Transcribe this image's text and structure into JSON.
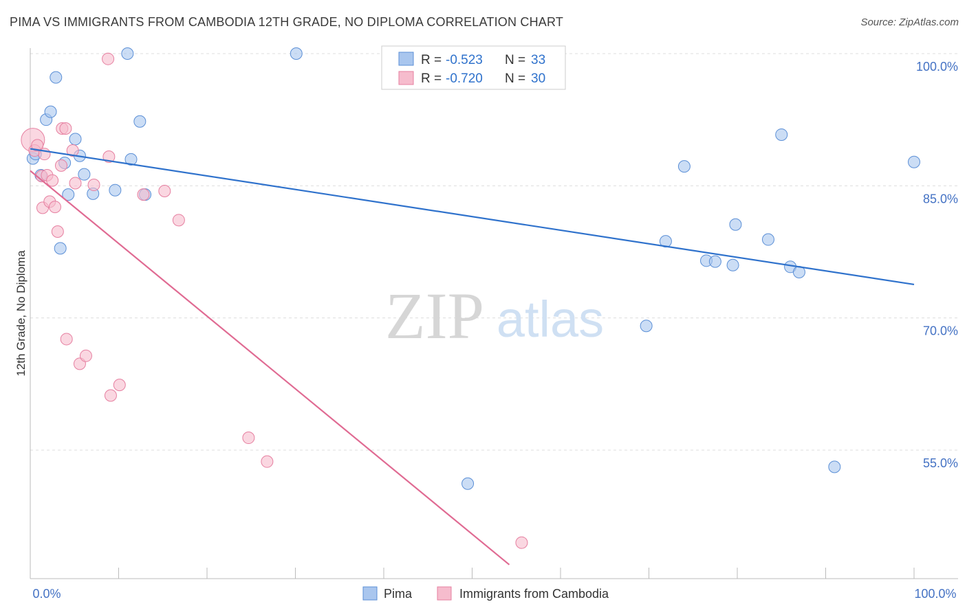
{
  "title": "PIMA VS IMMIGRANTS FROM CAMBODIA 12TH GRADE, NO DIPLOMA CORRELATION CHART",
  "source": "Source: ZipAtlas.com",
  "watermark": {
    "zip": "ZIP",
    "atlas": "atlas"
  },
  "colors": {
    "pima_fill": "#a9c6ee",
    "pima_stroke": "#5b8fd6",
    "pima_line": "#2f72cc",
    "cambodia_fill": "#f6bccd",
    "cambodia_stroke": "#e67fa0",
    "cambodia_line": "#e06b93",
    "tick_label": "#4472c4",
    "grid": "#dddddd"
  },
  "legend": {
    "rows": [
      {
        "r_label": "R =",
        "r_value": "-0.523",
        "n_label": "N =",
        "n_value": "33"
      },
      {
        "r_label": "R =",
        "r_value": "-0.720",
        "n_label": "N =",
        "n_value": "30"
      }
    ]
  },
  "chart_data": {
    "type": "scatter",
    "title": "PIMA VS IMMIGRANTS FROM CAMBODIA 12TH GRADE, NO DIPLOMA CORRELATION CHART",
    "xlabel": "",
    "ylabel": "12th Grade, No Diploma",
    "xlim": [
      0,
      100
    ],
    "ylim": [
      42,
      101.5
    ],
    "x_tick_labels": [
      "0.0%",
      "100.0%"
    ],
    "y_ticks": [
      55,
      70,
      85,
      100
    ],
    "y_tick_labels": [
      "55.0%",
      "70.0%",
      "85.0%",
      "100.0%"
    ],
    "grid": true,
    "legend_position": "top-center",
    "series": [
      {
        "name": "Pima",
        "r": -0.523,
        "n": 33,
        "trend": {
          "x": [
            0,
            100
          ],
          "y": [
            89.2,
            73.8
          ]
        },
        "points": [
          {
            "x": 0.3,
            "y": 88.1
          },
          {
            "x": 0.6,
            "y": 88.6
          },
          {
            "x": 1.2,
            "y": 86.2
          },
          {
            "x": 1.8,
            "y": 92.5
          },
          {
            "x": 2.3,
            "y": 93.4
          },
          {
            "x": 2.9,
            "y": 97.3
          },
          {
            "x": 3.4,
            "y": 77.9
          },
          {
            "x": 3.9,
            "y": 87.6
          },
          {
            "x": 4.3,
            "y": 84.0
          },
          {
            "x": 5.1,
            "y": 90.3
          },
          {
            "x": 5.6,
            "y": 88.4
          },
          {
            "x": 6.1,
            "y": 86.3
          },
          {
            "x": 7.1,
            "y": 84.1
          },
          {
            "x": 9.6,
            "y": 84.5
          },
          {
            "x": 11.0,
            "y": 100.0
          },
          {
            "x": 11.4,
            "y": 88.0
          },
          {
            "x": 12.4,
            "y": 92.3
          },
          {
            "x": 13.0,
            "y": 84.0
          },
          {
            "x": 30.1,
            "y": 100.0
          },
          {
            "x": 49.5,
            "y": 51.2
          },
          {
            "x": 69.7,
            "y": 69.1
          },
          {
            "x": 71.9,
            "y": 78.7
          },
          {
            "x": 74.0,
            "y": 87.2
          },
          {
            "x": 76.5,
            "y": 76.5
          },
          {
            "x": 77.5,
            "y": 76.4
          },
          {
            "x": 79.5,
            "y": 76.0
          },
          {
            "x": 79.8,
            "y": 80.6
          },
          {
            "x": 83.5,
            "y": 78.9
          },
          {
            "x": 85.0,
            "y": 90.8
          },
          {
            "x": 86.0,
            "y": 75.8
          },
          {
            "x": 87.0,
            "y": 75.2
          },
          {
            "x": 91.0,
            "y": 53.1
          },
          {
            "x": 100.0,
            "y": 87.7
          }
        ]
      },
      {
        "name": "Immigrants from Cambodia",
        "r": -0.72,
        "n": 30,
        "trend": {
          "x": [
            0,
            54.2
          ],
          "y": [
            86.7,
            42
          ]
        },
        "points": [
          {
            "x": 0.3,
            "y": 90.2,
            "big": true
          },
          {
            "x": 0.5,
            "y": 89.0
          },
          {
            "x": 0.8,
            "y": 89.6
          },
          {
            "x": 1.3,
            "y": 86.1
          },
          {
            "x": 1.4,
            "y": 82.5
          },
          {
            "x": 1.6,
            "y": 88.6
          },
          {
            "x": 1.9,
            "y": 86.2
          },
          {
            "x": 2.2,
            "y": 83.2
          },
          {
            "x": 2.5,
            "y": 85.6
          },
          {
            "x": 2.8,
            "y": 82.6
          },
          {
            "x": 3.1,
            "y": 79.8
          },
          {
            "x": 3.5,
            "y": 87.3
          },
          {
            "x": 3.6,
            "y": 91.5
          },
          {
            "x": 4.0,
            "y": 91.5
          },
          {
            "x": 4.1,
            "y": 67.6
          },
          {
            "x": 4.8,
            "y": 89.0
          },
          {
            "x": 5.1,
            "y": 85.3
          },
          {
            "x": 5.6,
            "y": 64.8
          },
          {
            "x": 6.3,
            "y": 65.7
          },
          {
            "x": 7.2,
            "y": 85.1
          },
          {
            "x": 8.8,
            "y": 99.4
          },
          {
            "x": 8.9,
            "y": 88.3
          },
          {
            "x": 9.1,
            "y": 61.2
          },
          {
            "x": 10.1,
            "y": 62.4
          },
          {
            "x": 12.8,
            "y": 84.0
          },
          {
            "x": 15.2,
            "y": 84.4
          },
          {
            "x": 16.8,
            "y": 81.1
          },
          {
            "x": 24.7,
            "y": 56.4
          },
          {
            "x": 26.8,
            "y": 53.7
          },
          {
            "x": 55.6,
            "y": 44.5
          }
        ]
      }
    ]
  }
}
